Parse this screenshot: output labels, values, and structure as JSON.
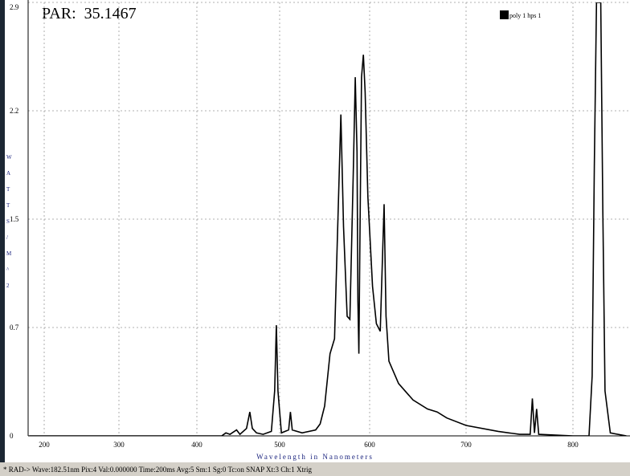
{
  "chart_data": {
    "type": "line",
    "title": "PAR:  35.1467",
    "x_label": "Wavelength in Nanometers",
    "y_label": "WATTS/M^2",
    "status": "* RAD->  Wave:182.51nm  Pix:4  Val:0.000000  Time:200ms  Avg:5  Sm:1  Sg:0  Tc:on  SNAP  Xt:3  Ch:1  Xtrig",
    "xlim": [
      180,
      850
    ],
    "xticks": [
      200,
      300,
      400,
      500,
      600,
      700,
      800
    ],
    "ylim": [
      0,
      2.9
    ],
    "yticks": [
      0,
      {
        "value": 0.725,
        "label": "0.7"
      },
      {
        "value": 1.45,
        "label": "1.5"
      },
      {
        "value": 2.175,
        "label": "2.2"
      },
      2.9
    ],
    "grid": true,
    "legend": "top-right",
    "series": [
      {
        "name": "poly 1 hps 1",
        "color": "#000000",
        "x": [
          180,
          430,
          435,
          440,
          448,
          452,
          460,
          464,
          467,
          472,
          480,
          490,
          494,
          496,
          498,
          502,
          510,
          512,
          514,
          525,
          540,
          545,
          550,
          556,
          561,
          565,
          568,
          571,
          575,
          578,
          582,
          584,
          586,
          587,
          588,
          589,
          591,
          593,
          595,
          598,
          603,
          607,
          611,
          615,
          617,
          620,
          630,
          645,
          660,
          670,
          680,
          700,
          730,
          750,
          760,
          762,
          764,
          766,
          768,
          800,
          815,
          818,
          820,
          822,
          826,
          828,
          830,
          835,
          850
        ],
        "values": [
          0,
          0,
          0.02,
          0.01,
          0.04,
          0.01,
          0.05,
          0.16,
          0.05,
          0.02,
          0.01,
          0.03,
          0.3,
          0.74,
          0.3,
          0.02,
          0.04,
          0.16,
          0.04,
          0.02,
          0.04,
          0.08,
          0.2,
          0.55,
          0.65,
          1.5,
          2.15,
          1.4,
          0.8,
          0.78,
          1.8,
          2.4,
          1.9,
          0.9,
          0.55,
          1.2,
          2.4,
          2.55,
          2.3,
          1.6,
          1.0,
          0.75,
          0.7,
          1.55,
          0.8,
          0.5,
          0.35,
          0.24,
          0.18,
          0.16,
          0.12,
          0.07,
          0.03,
          0.01,
          0.01,
          0.25,
          0.02,
          0.18,
          0.01,
          0,
          0,
          0.4,
          1.8,
          2.9,
          2.9,
          1.5,
          0.3,
          0.02,
          0
        ]
      }
    ]
  }
}
